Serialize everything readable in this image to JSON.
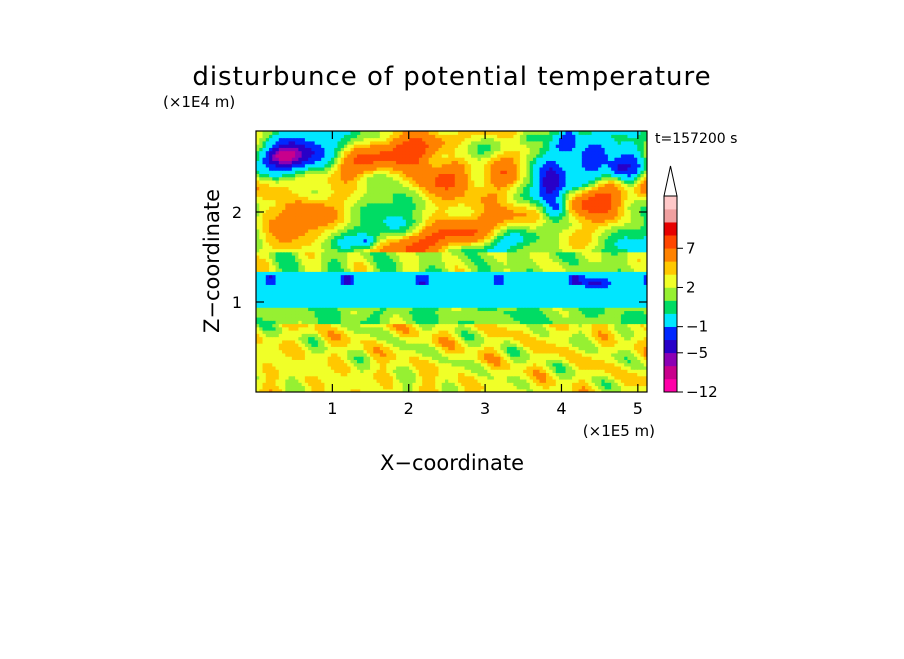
{
  "chart_data": {
    "type": "heatmap",
    "title": "disturbunce of potential temperature",
    "xlabel": "X−coordinate",
    "ylabel": "Z−coordinate",
    "x_unit": "(×1E5 m)",
    "y_unit": "(×1E4 m)",
    "time_label": "t=157200 s",
    "xlim": [
      0,
      5.12
    ],
    "ylim": [
      0,
      2.9
    ],
    "x_ticks": [
      1,
      2,
      3,
      4,
      5
    ],
    "y_ticks": [
      1,
      2
    ],
    "x_tick_labels": [
      "1",
      "2",
      "3",
      "4",
      "5"
    ],
    "y_tick_labels": [
      "1",
      "2"
    ],
    "colorbar": {
      "levels": [
        -12,
        -9,
        -7,
        -5,
        -3,
        -1,
        0,
        1,
        2,
        3,
        5,
        7,
        9,
        12
      ],
      "colors": [
        "#ff00a8",
        "#c8008c",
        "#8c00b4",
        "#2800c8",
        "#0028ff",
        "#00e6ff",
        "#00dc64",
        "#96f032",
        "#f0ff28",
        "#ffc800",
        "#ff8200",
        "#ff4600",
        "#e60000",
        "#f0a0a0",
        "#ffc8c8"
      ],
      "labeled_levels": [
        "−12",
        "−5",
        "−1",
        "2",
        "7"
      ],
      "extend_top": true
    }
  }
}
